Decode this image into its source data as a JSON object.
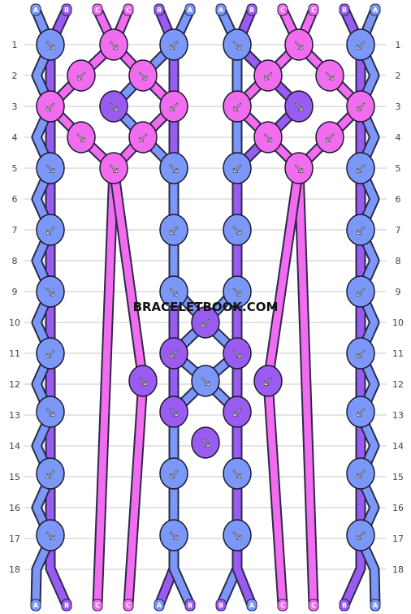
{
  "watermark": "BRACELETBOOK.COM",
  "colors": {
    "A": "#7b97f7",
    "B": "#9a5bf0",
    "C": "#f26cf0"
  },
  "strings_top": [
    "A",
    "B",
    "C",
    "C",
    "B",
    "A",
    "A",
    "B",
    "C",
    "C",
    "B",
    "A"
  ],
  "strings_bottom": [
    "A",
    "B",
    "C",
    "C",
    "A",
    "B",
    "B",
    "A",
    "C",
    "C",
    "B",
    "A"
  ],
  "rows": [
    1,
    2,
    3,
    4,
    5,
    6,
    7,
    8,
    9,
    10,
    11,
    12,
    13,
    14,
    15,
    16,
    17,
    18
  ],
  "knot_arrows": {
    "knot_1": "↘",
    "knot_2": "↘",
    "knot_3": "↙",
    "knot_4": "↙",
    "knot_5": "↘",
    "knot_6": "↙",
    "knot_7": "↘",
    "knot_8": "↘",
    "knot_9": "↙",
    "knot_10": "↘",
    "knot_11": "↙"
  }
}
